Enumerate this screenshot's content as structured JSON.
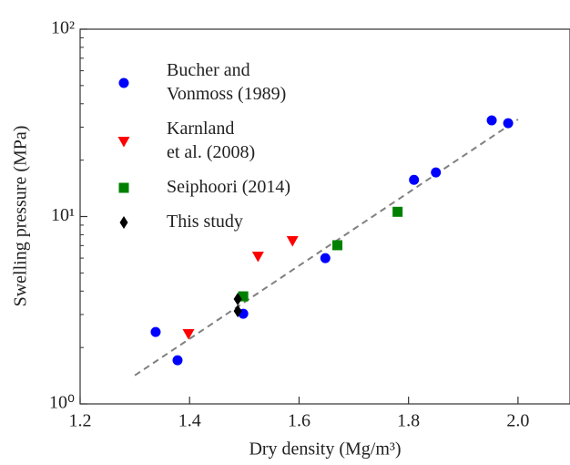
{
  "chart_data": {
    "type": "scatter",
    "xlabel": "Dry density (Mg/m³)",
    "ylabel": "Swelling pressure (MPa)",
    "xlim": [
      1.2,
      2.095
    ],
    "ylim": [
      1,
      100
    ],
    "ylog": true,
    "xticks": [
      1.2,
      1.4,
      1.6,
      1.8,
      {
        "value": 2,
        "label": "2.0"
      }
    ],
    "yticks": [
      {
        "value": 1,
        "label": "10⁰"
      },
      {
        "value": 10,
        "label": "10¹"
      },
      {
        "value": 100,
        "label": "10²"
      }
    ],
    "yminorticks": [
      2,
      3,
      4,
      5,
      6,
      7,
      8,
      9,
      20,
      30,
      40,
      50,
      60,
      70,
      80,
      90
    ],
    "legend": "upper left",
    "series": [
      {
        "name": "Bucher and\nVonmoss (1989)",
        "color": "#0000ff",
        "marker": "circle",
        "x": [
          1.338,
          1.378,
          1.498,
          1.648,
          1.81,
          1.85,
          1.952,
          1.982
        ],
        "values": [
          2.42,
          1.71,
          3.03,
          6.0,
          15.7,
          17.2,
          32.6,
          31.5
        ]
      },
      {
        "name": "Karnland\net al. (2008)",
        "color": "#ff0000",
        "marker": "triangle-down",
        "x": [
          1.398,
          1.525,
          1.588
        ],
        "values": [
          2.37,
          6.14,
          7.43
        ]
      },
      {
        "name": "Seiphoori (2014)",
        "color": "#008000",
        "marker": "square",
        "x": [
          1.498,
          1.67,
          1.78
        ],
        "values": [
          3.75,
          7.03,
          10.6
        ]
      },
      {
        "name": "This study",
        "color": "#000000",
        "marker": "diamond",
        "x": [
          1.488,
          1.488
        ],
        "values": [
          3.63,
          3.13
        ]
      }
    ],
    "trend": {
      "x": [
        1.3,
        2.0
      ],
      "values": [
        1.42,
        33
      ],
      "color": "#808080",
      "style": "dashed"
    }
  }
}
